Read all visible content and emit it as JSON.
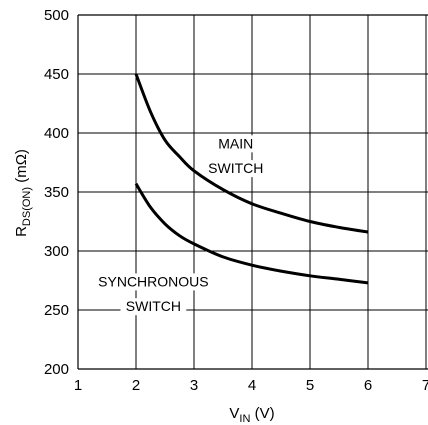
{
  "chart_data": {
    "type": "line",
    "xlabel": {
      "main": "V",
      "sub": "IN",
      "unit": " (V)"
    },
    "ylabel": {
      "main": "R",
      "sub": "DS(ON)",
      "unit": " (mΩ)"
    },
    "xlim": [
      1,
      7
    ],
    "ylim": [
      200,
      500
    ],
    "xticks": [
      "1",
      "2",
      "3",
      "4",
      "5",
      "6",
      "7"
    ],
    "yticks": [
      "200",
      "250",
      "300",
      "350",
      "400",
      "450",
      "500"
    ],
    "grid": true,
    "series": [
      {
        "x": [
          2.0,
          2.25,
          2.5,
          2.75,
          3.0,
          3.5,
          4.0,
          4.5,
          5.0,
          5.5,
          6.0
        ],
        "y": [
          450,
          418,
          394,
          380,
          368,
          352,
          340,
          332,
          325,
          320,
          316
        ]
      },
      {
        "x": [
          2.0,
          2.25,
          2.5,
          2.75,
          3.0,
          3.5,
          4.0,
          4.5,
          5.0,
          5.5,
          6.0
        ],
        "y": [
          357,
          337,
          323,
          313,
          306,
          295,
          288,
          283,
          279,
          276,
          273
        ]
      }
    ],
    "annotations": [
      {
        "lines": [
          "MAIN",
          "SWITCH"
        ],
        "x": 3.72,
        "y": [
          387,
          366
        ]
      },
      {
        "lines": [
          "SYNCHRONOUS",
          "SWITCH"
        ],
        "x": 2.3,
        "y": [
          270,
          249
        ]
      }
    ]
  }
}
